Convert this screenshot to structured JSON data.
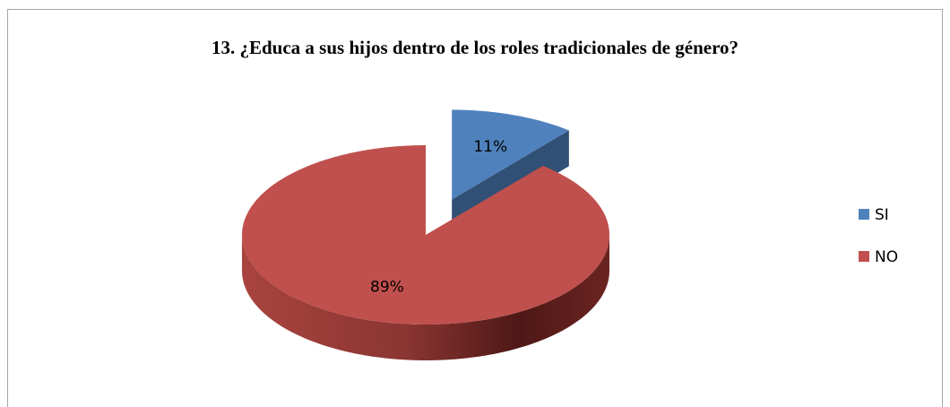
{
  "chart_data": {
    "type": "pie",
    "title": "13. ¿Educa a sus hijos dentro de los roles tradicionales de género?",
    "categories": [
      "SI",
      "NO"
    ],
    "values": [
      11,
      89
    ],
    "value_labels": [
      "11%",
      "89%"
    ],
    "colors": [
      "#4f81bd",
      "#c0504d"
    ],
    "legend": "right"
  }
}
